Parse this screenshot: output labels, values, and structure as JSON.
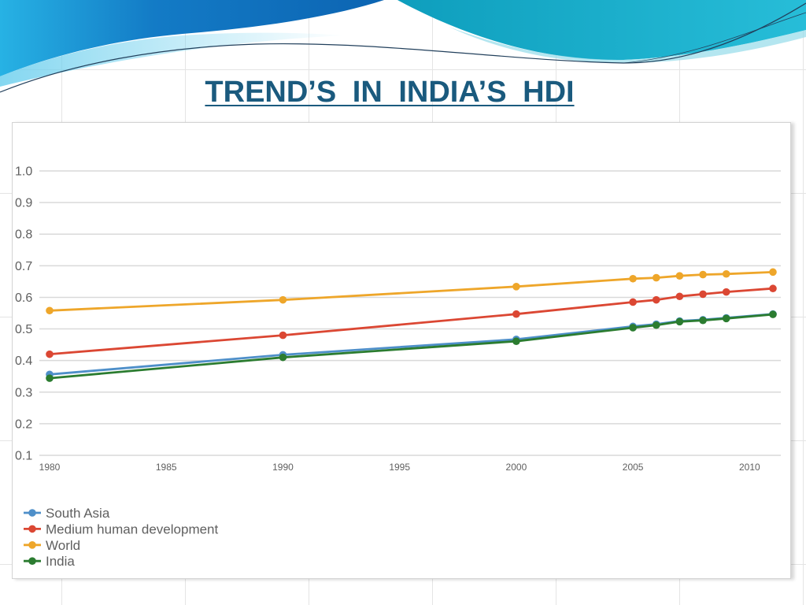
{
  "slide": {
    "title": "TREND’S IN INDIA’S HDI",
    "title_color": "#1a5a7e"
  },
  "theme": {
    "banner_blue_light": "#27b2e4",
    "banner_blue": "#137bc6",
    "banner_blue_dark": "#0c64b2",
    "banner_teal": "#0e9ebd",
    "banner_teal_light": "#27bdd8",
    "banner_line": "#22405c"
  },
  "chart_data": {
    "type": "line",
    "x": [
      1980,
      1990,
      2000,
      2005,
      2006,
      2007,
      2008,
      2009,
      2011
    ],
    "xlim": [
      1980,
      2011
    ],
    "ylim": [
      0.1,
      1.0
    ],
    "x_ticks": [
      "1980",
      "1985",
      "1990",
      "1995",
      "2000",
      "2005",
      "2010"
    ],
    "y_ticks": [
      "1.0",
      "0.9",
      "0.8",
      "0.7",
      "0.6",
      "0.5",
      "0.4",
      "0.3",
      "0.2",
      "0.1"
    ],
    "grid": "horizontal",
    "gridline_color": "#d9d9d9",
    "legend_position": "bottom-left",
    "series": [
      {
        "name": "South Asia",
        "color": "#4e8fc9",
        "values": [
          0.356,
          0.418,
          0.467,
          0.508,
          0.515,
          0.525,
          0.529,
          0.535,
          0.547
        ]
      },
      {
        "name": "Medium human development",
        "color": "#db4733",
        "values": [
          0.42,
          0.48,
          0.547,
          0.585,
          0.592,
          0.603,
          0.61,
          0.617,
          0.628
        ]
      },
      {
        "name": "World",
        "color": "#eea62a",
        "values": [
          0.558,
          0.592,
          0.634,
          0.659,
          0.662,
          0.668,
          0.672,
          0.674,
          0.68
        ]
      },
      {
        "name": "India",
        "color": "#2b7c30",
        "values": [
          0.344,
          0.41,
          0.461,
          0.504,
          0.512,
          0.523,
          0.527,
          0.533,
          0.546
        ]
      }
    ]
  }
}
